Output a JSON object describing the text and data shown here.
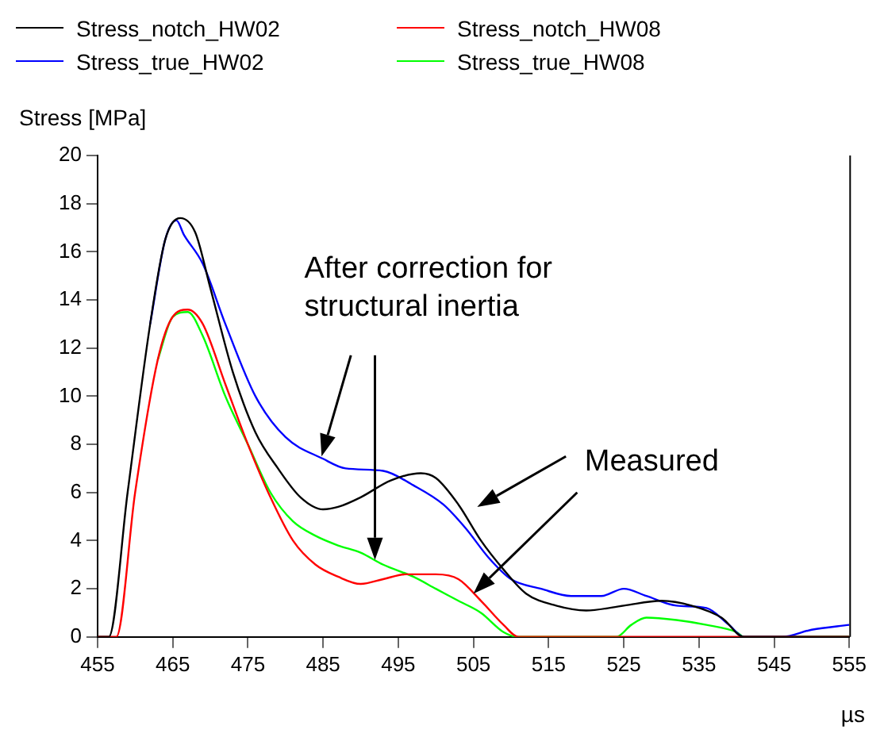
{
  "chart_data": {
    "type": "line",
    "ylabel": "Stress [MPa]",
    "xlabel": "µs",
    "xlim": [
      455,
      555
    ],
    "xticks": [
      455,
      465,
      475,
      485,
      495,
      505,
      515,
      525,
      535,
      545,
      555
    ],
    "ylim": [
      0,
      20
    ],
    "yticks": [
      0,
      2,
      4,
      6,
      8,
      10,
      12,
      14,
      16,
      18,
      20
    ],
    "grid": false,
    "legend": "top left",
    "marker": "none",
    "line_style": "solid",
    "annotations": [
      "After correction for\nstructural inertia",
      "Measured"
    ],
    "series": [
      {
        "name": "Stress_notch_HW02",
        "color": "#000000",
        "x": [
          455,
          456.5,
          459,
          462,
          464,
          466,
          468,
          470,
          473,
          476,
          479,
          482,
          485,
          487,
          490,
          494,
          498,
          500,
          503,
          506,
          509,
          512,
          516,
          520,
          525,
          530,
          534,
          538,
          541,
          555
        ],
        "values": [
          0,
          0,
          6,
          13,
          16.5,
          17.4,
          16.8,
          14.5,
          11,
          8.5,
          7,
          5.8,
          5.3,
          5.4,
          5.8,
          6.5,
          6.8,
          6.6,
          5.5,
          4,
          2.8,
          1.8,
          1.3,
          1.1,
          1.3,
          1.5,
          1.3,
          0.8,
          0,
          0
        ]
      },
      {
        "name": "Stress_notch_HW08",
        "color": "#ff0000",
        "x": [
          455,
          457.5,
          460,
          463,
          465,
          467,
          469,
          472,
          475,
          478,
          481,
          484,
          487,
          490,
          493,
          496,
          500,
          503,
          506,
          509,
          511,
          555
        ],
        "values": [
          0,
          0,
          6,
          11.5,
          13.3,
          13.6,
          13,
          10.5,
          8,
          5.8,
          4,
          3,
          2.5,
          2.2,
          2.4,
          2.6,
          2.6,
          2.4,
          1.5,
          0.5,
          0,
          0
        ]
      },
      {
        "name": "Stress_true_HW02",
        "color": "#0000ff",
        "x": [
          462,
          464,
          465.5,
          466.5,
          469,
          472,
          476,
          480,
          485,
          488,
          493,
          497,
          501,
          504,
          507,
          510,
          514,
          518,
          522,
          525,
          528,
          532,
          536,
          539,
          541,
          546,
          550,
          555
        ],
        "values": [
          13,
          16.5,
          17.3,
          16.7,
          15.5,
          13,
          10,
          8.3,
          7.4,
          7,
          6.9,
          6.3,
          5.5,
          4.5,
          3.3,
          2.4,
          2,
          1.7,
          1.7,
          2,
          1.7,
          1.3,
          1.2,
          0.5,
          0,
          0,
          0.3,
          0.5
        ]
      },
      {
        "name": "Stress_true_HW08",
        "color": "#00ff00",
        "x": [
          463,
          465,
          467,
          469,
          472,
          475,
          478,
          481,
          484,
          487,
          490,
          493,
          497,
          500,
          503,
          506,
          509,
          511,
          524,
          526,
          528,
          532,
          536,
          540,
          541,
          555
        ],
        "values": [
          11.5,
          13.3,
          13.5,
          12.5,
          10,
          8,
          6,
          4.8,
          4.2,
          3.8,
          3.5,
          3,
          2.5,
          2,
          1.5,
          1,
          0.2,
          0,
          0,
          0.5,
          0.8,
          0.7,
          0.5,
          0.2,
          0,
          0
        ]
      }
    ]
  }
}
